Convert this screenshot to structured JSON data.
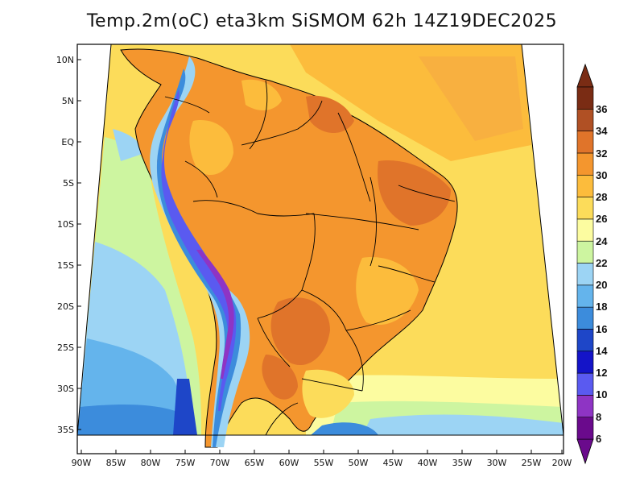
{
  "title": "Temp.2m(oC) eta3km SiSMOM 62h 14Z19DEC2025",
  "map": {
    "lat_ticks": [
      "10N",
      "5N",
      "EQ",
      "5S",
      "10S",
      "15S",
      "20S",
      "25S",
      "30S",
      "35S"
    ],
    "lon_ticks": [
      "90W",
      "85W",
      "80W",
      "75W",
      "70W",
      "65W",
      "60W",
      "55W",
      "50W",
      "45W",
      "40W",
      "35W",
      "30W",
      "25W",
      "20W"
    ]
  },
  "colorbar": {
    "labels": [
      "6",
      "8",
      "10",
      "12",
      "14",
      "16",
      "18",
      "20",
      "22",
      "24",
      "26",
      "28",
      "30",
      "32",
      "34",
      "36"
    ],
    "colors": [
      "#6a0a8c",
      "#8e34c4",
      "#5a5af0",
      "#1414c8",
      "#1e46c8",
      "#3c8cdc",
      "#64b4ec",
      "#9cd4f4",
      "#cdf5a0",
      "#fcfca0",
      "#fcdc5a",
      "#fcbc3c",
      "#f4962e",
      "#e0742a",
      "#b05024",
      "#7a2c14"
    ],
    "over_color": "#7a2c14",
    "under_color": "#6a0a8c"
  }
}
